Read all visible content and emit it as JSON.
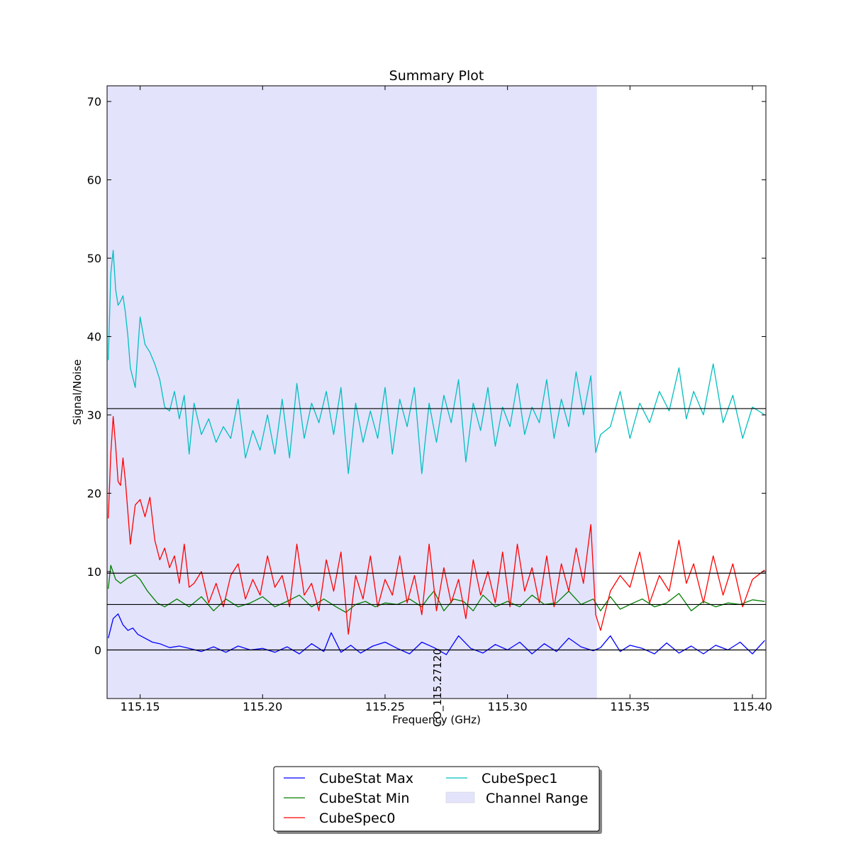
{
  "chart_data": {
    "type": "line",
    "title": "Summary Plot",
    "xlabel": "Frequency (GHz)",
    "ylabel": "Signal/Noise",
    "xlim": [
      115.1365,
      115.4055
    ],
    "ylim": [
      -6.2,
      72
    ],
    "xticks": [
      115.15,
      115.2,
      115.25,
      115.3,
      115.35,
      115.4
    ],
    "xtick_labels": [
      "115.15",
      "115.20",
      "115.25",
      "115.30",
      "115.35",
      "115.40"
    ],
    "yticks": [
      0,
      10,
      20,
      30,
      40,
      50,
      60,
      70
    ],
    "ytick_labels": [
      "0",
      "10",
      "20",
      "30",
      "40",
      "50",
      "60",
      "70"
    ],
    "channel_range": [
      115.1365,
      115.3365
    ],
    "hlines": [
      0,
      5.8,
      9.8,
      30.8
    ],
    "annotations": [
      {
        "text": "CO_115.27120",
        "x": 115.2712
      }
    ],
    "legend_location": "below plot",
    "series": [
      {
        "name": "CubeStat Max",
        "color": "#0000ff",
        "x": [
          115.137,
          115.139,
          115.141,
          115.143,
          115.145,
          115.147,
          115.149,
          115.152,
          115.155,
          115.158,
          115.162,
          115.166,
          115.17,
          115.175,
          115.18,
          115.185,
          115.19,
          115.195,
          115.2,
          115.205,
          115.21,
          115.215,
          115.22,
          115.225,
          115.228,
          115.232,
          115.236,
          115.24,
          115.245,
          115.25,
          115.255,
          115.26,
          115.265,
          115.27,
          115.275,
          115.28,
          115.285,
          115.29,
          115.295,
          115.3,
          115.305,
          115.31,
          115.315,
          115.32,
          115.325,
          115.33,
          115.335,
          115.338,
          115.342,
          115.346,
          115.35,
          115.355,
          115.36,
          115.365,
          115.37,
          115.375,
          115.38,
          115.385,
          115.39,
          115.395,
          115.4,
          115.405
        ],
        "y": [
          1.5,
          4.0,
          4.6,
          3.2,
          2.5,
          2.8,
          2.0,
          1.5,
          1.0,
          0.8,
          0.3,
          0.5,
          0.2,
          -0.2,
          0.4,
          -0.3,
          0.5,
          0.0,
          0.2,
          -0.3,
          0.4,
          -0.5,
          0.8,
          -0.2,
          2.2,
          -0.3,
          0.6,
          -0.4,
          0.5,
          1.0,
          0.2,
          -0.5,
          1.0,
          0.3,
          -0.6,
          1.8,
          0.2,
          -0.4,
          0.7,
          0.0,
          1.0,
          -0.5,
          0.8,
          -0.2,
          1.5,
          0.4,
          -0.1,
          0.3,
          1.8,
          -0.2,
          0.6,
          0.2,
          -0.5,
          0.9,
          -0.4,
          0.5,
          -0.5,
          0.6,
          0.0,
          1.0,
          -0.5,
          1.2
        ]
      },
      {
        "name": "CubeStat Min",
        "color": "#008000",
        "x": [
          115.137,
          115.138,
          115.14,
          115.142,
          115.145,
          115.148,
          115.15,
          115.153,
          115.157,
          115.16,
          115.165,
          115.17,
          115.175,
          115.18,
          115.185,
          115.19,
          115.195,
          115.2,
          115.205,
          115.21,
          115.215,
          115.22,
          115.225,
          115.23,
          115.234,
          115.238,
          115.242,
          115.246,
          115.25,
          115.255,
          115.26,
          115.265,
          115.268,
          115.27,
          115.274,
          115.278,
          115.282,
          115.286,
          115.29,
          115.295,
          115.3,
          115.305,
          115.31,
          115.315,
          115.32,
          115.325,
          115.33,
          115.335,
          115.338,
          115.342,
          115.346,
          115.35,
          115.355,
          115.36,
          115.365,
          115.37,
          115.375,
          115.38,
          115.385,
          115.39,
          115.395,
          115.4,
          115.405
        ],
        "y": [
          7.8,
          10.8,
          9.0,
          8.5,
          9.2,
          9.6,
          9.0,
          7.5,
          6.0,
          5.5,
          6.5,
          5.5,
          6.8,
          5.0,
          6.5,
          5.5,
          6.0,
          6.8,
          5.5,
          6.2,
          7.0,
          5.5,
          6.5,
          5.5,
          4.8,
          5.8,
          6.2,
          5.5,
          6.0,
          5.8,
          6.5,
          5.5,
          6.8,
          7.5,
          5.0,
          6.5,
          6.2,
          5.0,
          7.0,
          5.5,
          6.2,
          5.5,
          7.0,
          5.8,
          6.0,
          7.5,
          5.8,
          6.5,
          5.0,
          6.8,
          5.2,
          5.8,
          6.5,
          5.5,
          6.0,
          7.2,
          5.0,
          6.2,
          5.5,
          6.0,
          5.8,
          6.4,
          6.2
        ]
      },
      {
        "name": "CubeSpec0",
        "color": "#ff0000",
        "x": [
          115.137,
          115.138,
          115.139,
          115.14,
          115.141,
          115.142,
          115.143,
          115.144,
          115.145,
          115.146,
          115.148,
          115.15,
          115.152,
          115.154,
          115.156,
          115.158,
          115.16,
          115.162,
          115.164,
          115.166,
          115.168,
          115.17,
          115.172,
          115.175,
          115.178,
          115.181,
          115.184,
          115.187,
          115.19,
          115.193,
          115.196,
          115.199,
          115.202,
          115.205,
          115.208,
          115.211,
          115.214,
          115.217,
          115.22,
          115.223,
          115.226,
          115.229,
          115.232,
          115.235,
          115.238,
          115.241,
          115.244,
          115.247,
          115.25,
          115.253,
          115.256,
          115.259,
          115.262,
          115.265,
          115.268,
          115.271,
          115.274,
          115.277,
          115.28,
          115.283,
          115.286,
          115.289,
          115.292,
          115.295,
          115.298,
          115.301,
          115.304,
          115.307,
          115.31,
          115.313,
          115.316,
          115.319,
          115.322,
          115.325,
          115.328,
          115.331,
          115.334,
          115.336,
          115.338,
          115.342,
          115.346,
          115.35,
          115.354,
          115.358,
          115.362,
          115.366,
          115.37,
          115.373,
          115.376,
          115.38,
          115.384,
          115.388,
          115.392,
          115.396,
          115.4,
          115.405
        ],
        "y": [
          16.8,
          25.0,
          29.8,
          26.0,
          21.5,
          21.0,
          24.5,
          21.5,
          17.5,
          13.5,
          18.5,
          19.2,
          17.0,
          19.5,
          14.0,
          11.5,
          13.0,
          10.5,
          12.0,
          8.5,
          13.5,
          8.0,
          8.5,
          10.0,
          6.0,
          8.5,
          5.5,
          9.5,
          11.0,
          6.5,
          9.0,
          7.0,
          12.0,
          8.0,
          9.5,
          5.5,
          13.5,
          7.0,
          8.5,
          5.0,
          11.5,
          7.5,
          12.5,
          2.0,
          9.5,
          6.5,
          12.0,
          5.5,
          9.0,
          7.0,
          12.0,
          6.0,
          9.5,
          4.5,
          13.5,
          5.0,
          10.5,
          6.0,
          9.0,
          4.0,
          11.5,
          7.0,
          10.0,
          6.0,
          12.5,
          5.5,
          13.5,
          7.5,
          10.5,
          6.0,
          12.0,
          5.5,
          11.0,
          7.5,
          13.0,
          8.5,
          16.0,
          4.5,
          2.5,
          7.5,
          9.5,
          8.0,
          12.5,
          6.0,
          9.5,
          7.5,
          14.0,
          8.5,
          11.0,
          6.0,
          12.0,
          7.0,
          11.0,
          5.5,
          9.0,
          10.2
        ]
      },
      {
        "name": "CubeSpec1",
        "color": "#00bfbf",
        "x": [
          115.137,
          115.138,
          115.139,
          115.14,
          115.141,
          115.142,
          115.143,
          115.144,
          115.145,
          115.146,
          115.148,
          115.15,
          115.152,
          115.154,
          115.156,
          115.158,
          115.16,
          115.162,
          115.164,
          115.166,
          115.168,
          115.17,
          115.172,
          115.175,
          115.178,
          115.181,
          115.184,
          115.187,
          115.19,
          115.193,
          115.196,
          115.199,
          115.202,
          115.205,
          115.208,
          115.211,
          115.214,
          115.217,
          115.22,
          115.223,
          115.226,
          115.229,
          115.232,
          115.235,
          115.238,
          115.241,
          115.244,
          115.247,
          115.25,
          115.253,
          115.256,
          115.259,
          115.262,
          115.265,
          115.268,
          115.271,
          115.274,
          115.277,
          115.28,
          115.283,
          115.286,
          115.289,
          115.292,
          115.295,
          115.298,
          115.301,
          115.304,
          115.307,
          115.31,
          115.313,
          115.316,
          115.319,
          115.322,
          115.325,
          115.328,
          115.331,
          115.334,
          115.336,
          115.338,
          115.342,
          115.346,
          115.35,
          115.354,
          115.358,
          115.362,
          115.366,
          115.37,
          115.373,
          115.376,
          115.38,
          115.384,
          115.388,
          115.392,
          115.396,
          115.4,
          115.405
        ],
        "y": [
          37.0,
          48.0,
          51.0,
          46.0,
          44.0,
          44.5,
          45.2,
          43.0,
          40.0,
          36.0,
          33.5,
          42.5,
          39.0,
          38.0,
          36.5,
          34.5,
          31.0,
          30.5,
          33.0,
          29.5,
          32.5,
          25.0,
          31.5,
          27.5,
          29.5,
          26.5,
          28.5,
          27.0,
          32.0,
          24.5,
          28.0,
          25.5,
          30.0,
          25.0,
          32.0,
          24.5,
          34.0,
          27.0,
          31.5,
          29.0,
          33.0,
          27.5,
          33.5,
          22.5,
          31.5,
          26.5,
          30.5,
          27.0,
          33.5,
          25.0,
          32.0,
          28.5,
          33.5,
          22.5,
          31.5,
          26.5,
          32.5,
          29.0,
          34.5,
          24.0,
          31.5,
          28.0,
          33.5,
          26.0,
          31.0,
          28.5,
          34.0,
          27.5,
          31.0,
          29.0,
          34.5,
          27.0,
          32.0,
          28.5,
          35.5,
          30.0,
          35.0,
          25.2,
          27.5,
          28.5,
          33.0,
          27.0,
          31.5,
          29.0,
          33.0,
          30.5,
          36.0,
          29.5,
          33.0,
          30.0,
          36.5,
          29.0,
          32.5,
          27.0,
          31.0,
          30.0
        ]
      }
    ]
  }
}
